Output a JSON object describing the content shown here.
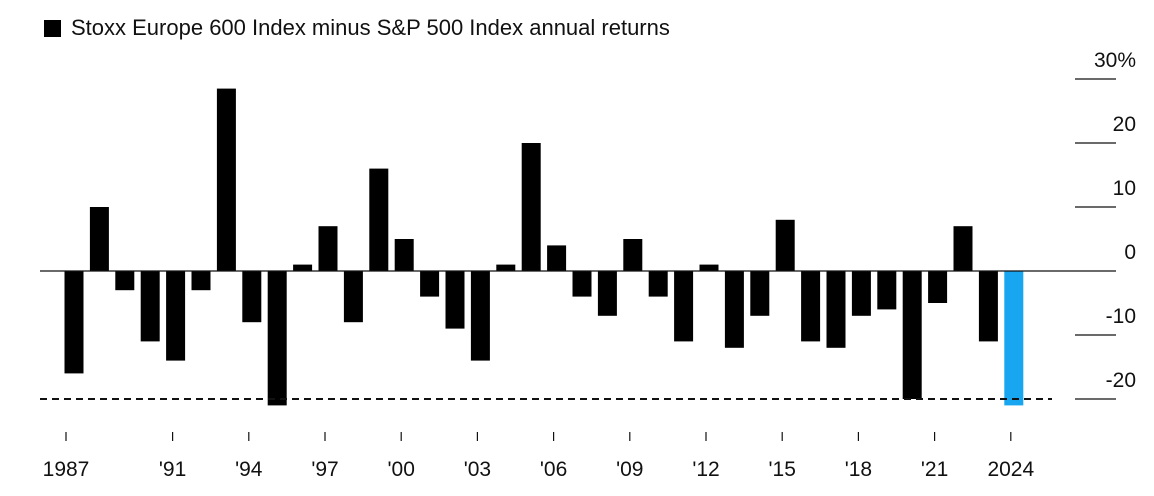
{
  "chart_data": {
    "type": "bar",
    "title": "Stoxx Europe 600 Index minus S&P 500 Index annual returns",
    "legend": [
      {
        "name": "Stoxx Europe 600 Index minus S&P 500 Index annual returns",
        "color": "#000000"
      }
    ],
    "x": [
      1987,
      1988,
      1989,
      1990,
      1991,
      1992,
      1993,
      1994,
      1995,
      1996,
      1997,
      1998,
      1999,
      2000,
      2001,
      2002,
      2003,
      2004,
      2005,
      2006,
      2007,
      2008,
      2009,
      2010,
      2011,
      2012,
      2013,
      2014,
      2015,
      2016,
      2017,
      2018,
      2019,
      2020,
      2021,
      2022,
      2023,
      2024
    ],
    "values": [
      -16,
      10,
      -3,
      -11,
      -14,
      -3,
      28.5,
      -8,
      -21,
      1,
      7,
      -8,
      16,
      5,
      -4,
      -9,
      -14,
      1,
      20,
      4,
      -4,
      -7,
      5,
      -4,
      -11,
      1,
      -12,
      -7,
      8,
      -11,
      -12,
      -7,
      -6,
      -20,
      -5,
      7,
      -11,
      -21
    ],
    "highlight": {
      "year": 2024,
      "color": "#17a6ef"
    },
    "colors": {
      "bar": "#000000",
      "highlight": "#17a6ef",
      "zero_line": "#111111",
      "grid": "#111111",
      "text": "#111111"
    },
    "ylim": [
      -22,
      30
    ],
    "yticks": [
      30,
      20,
      10,
      0,
      -10,
      -20
    ],
    "ytick_labels": [
      "30%",
      "20",
      "10",
      "0",
      "-10",
      "-20"
    ],
    "xticks": [
      1987,
      1991,
      1994,
      1997,
      2000,
      2003,
      2006,
      2009,
      2012,
      2015,
      2018,
      2021,
      2024
    ],
    "xtick_labels": [
      "1987",
      "'91",
      "'94",
      "'97",
      "'00",
      "'03",
      "'06",
      "'09",
      "'12",
      "'15",
      "'18",
      "'21",
      "2024"
    ],
    "reference_line": {
      "value": -20,
      "style": "dashed"
    },
    "y_axis_position": "right",
    "grid": false,
    "legend_position": "top-left"
  }
}
